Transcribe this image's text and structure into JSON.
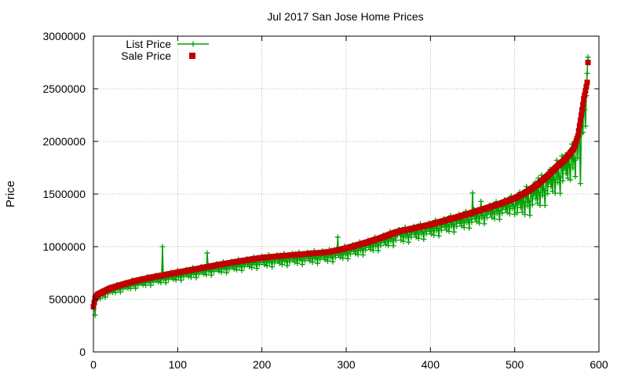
{
  "chart_data": {
    "type": "scatter",
    "title": "Jul 2017 San Jose Home Prices",
    "xlabel": "",
    "ylabel": "Price",
    "xlim": [
      0,
      600
    ],
    "ylim": [
      0,
      3000000
    ],
    "x_ticks": [
      0,
      100,
      200,
      300,
      400,
      500,
      600
    ],
    "y_ticks": [
      0,
      500000,
      1000000,
      1500000,
      2000000,
      2500000,
      3000000
    ],
    "grid": true,
    "legend_position": "top-left",
    "n_points": 588,
    "sale_curve_anchors": [
      [
        0,
        430000
      ],
      [
        2,
        510000
      ],
      [
        5,
        545000
      ],
      [
        10,
        565000
      ],
      [
        20,
        605000
      ],
      [
        30,
        630000
      ],
      [
        50,
        675000
      ],
      [
        70,
        710000
      ],
      [
        100,
        755000
      ],
      [
        130,
        800000
      ],
      [
        150,
        830000
      ],
      [
        180,
        870000
      ],
      [
        200,
        895000
      ],
      [
        220,
        910000
      ],
      [
        250,
        930000
      ],
      [
        280,
        950000
      ],
      [
        300,
        985000
      ],
      [
        320,
        1030000
      ],
      [
        340,
        1080000
      ],
      [
        360,
        1140000
      ],
      [
        380,
        1175000
      ],
      [
        400,
        1210000
      ],
      [
        420,
        1255000
      ],
      [
        440,
        1300000
      ],
      [
        460,
        1350000
      ],
      [
        480,
        1400000
      ],
      [
        500,
        1460000
      ],
      [
        510,
        1500000
      ],
      [
        520,
        1550000
      ],
      [
        530,
        1610000
      ],
      [
        540,
        1680000
      ],
      [
        550,
        1760000
      ],
      [
        560,
        1830000
      ],
      [
        570,
        1930000
      ],
      [
        575,
        2050000
      ],
      [
        578,
        2200000
      ],
      [
        580,
        2300000
      ],
      [
        582,
        2400000
      ],
      [
        584,
        2480000
      ],
      [
        586,
        2560000
      ],
      [
        587,
        2750000
      ]
    ],
    "list_deviation_pattern": [
      0.0,
      -0.04,
      0.02,
      -0.07,
      -0.02,
      -0.1,
      0.01,
      -0.05,
      -0.12,
      -0.03,
      0.03,
      -0.08,
      -0.01,
      -0.06,
      -0.14,
      -0.02,
      0.0,
      -0.09
    ],
    "list_outliers": [
      {
        "x": 2,
        "y": 350000
      },
      {
        "x": 82,
        "y": 1000000
      },
      {
        "x": 135,
        "y": 940000
      },
      {
        "x": 290,
        "y": 1090000
      },
      {
        "x": 363,
        "y": 1160000
      },
      {
        "x": 450,
        "y": 1510000
      },
      {
        "x": 460,
        "y": 1430000
      },
      {
        "x": 528,
        "y": 1650000
      },
      {
        "x": 556,
        "y": 1860000
      },
      {
        "x": 578,
        "y": 1600000
      },
      {
        "x": 587,
        "y": 2800000
      }
    ],
    "series": [
      {
        "name": "List Price",
        "color": "#00a000",
        "style": "linespoints",
        "marker": "plus"
      },
      {
        "name": "Sale Price",
        "color": "#c00000",
        "style": "points",
        "marker": "square"
      }
    ]
  }
}
